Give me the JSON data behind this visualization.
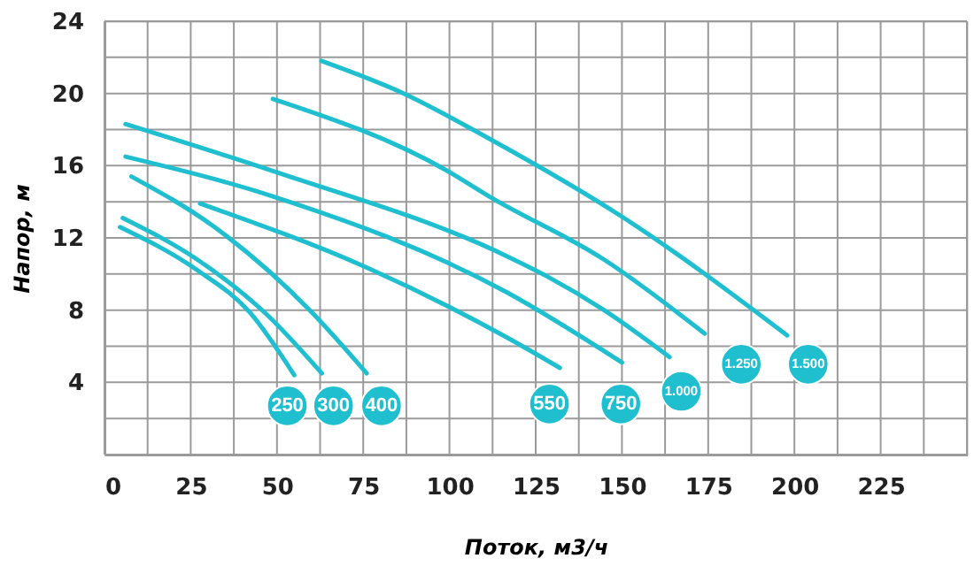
{
  "chart_data": {
    "type": "line",
    "xlabel": "Поток, м3/ч",
    "ylabel": "Напор, м",
    "xlim": [
      0,
      250
    ],
    "ylim": [
      0,
      24
    ],
    "xticks": [
      0,
      {
        "value": 12.5,
        "label": null
      },
      25,
      {
        "value": 37.5,
        "label": null
      },
      50,
      {
        "value": 62.5,
        "label": null
      },
      75,
      {
        "value": 87.5,
        "label": null
      },
      100,
      {
        "value": 112.5,
        "label": null
      },
      125,
      {
        "value": 137.5,
        "label": null
      },
      150,
      {
        "value": 162.5,
        "label": null
      },
      175,
      {
        "value": 187.5,
        "label": null
      },
      200,
      {
        "value": 212.5,
        "label": null
      },
      225,
      {
        "value": 237.5,
        "label": null
      },
      {
        "value": 250,
        "label": null
      }
    ],
    "yticks": [
      {
        "value": 0,
        "label": null
      },
      {
        "value": 2,
        "label": null
      },
      4,
      {
        "value": 6,
        "label": null
      },
      8,
      {
        "value": 10,
        "label": null
      },
      12,
      {
        "value": 14,
        "label": null
      },
      16,
      {
        "value": 18,
        "label": null
      },
      20,
      {
        "value": 22,
        "label": null
      },
      24
    ],
    "grid": true,
    "marker": "none",
    "line_style": "solid",
    "series": [
      {
        "color": "#1fbfd0",
        "x": [
          4.5,
          27,
          42,
          55
        ],
        "values": [
          12.6,
          10.2,
          7.9,
          4.4
        ]
      },
      {
        "color": "#1fbfd0",
        "x": [
          5.3,
          26.9,
          46.8,
          63
        ],
        "values": [
          13.1,
          10.8,
          7.8,
          4.5
        ]
      },
      {
        "color": "#1fbfd0",
        "x": [
          7.8,
          31.9,
          60,
          76
        ],
        "values": [
          15.4,
          12.6,
          7.9,
          4.5
        ]
      },
      {
        "color": "#1fbfd0",
        "x": [
          27.7,
          76.7,
          116.5,
          132
        ],
        "values": [
          13.9,
          10.3,
          6.5,
          4.8
        ]
      },
      {
        "color": "#1fbfd0",
        "x": [
          6.1,
          48.8,
          116.5,
          150
        ],
        "values": [
          16.5,
          14.3,
          9.0,
          5.1
        ]
      },
      {
        "color": "#1fbfd0",
        "x": [
          6.1,
          48.8,
          116.5,
          128,
          144.8,
          163.8
        ],
        "values": [
          18.3,
          15.7,
          11.0,
          9.9,
          8.0,
          5.4
        ]
      },
      {
        "color": "#1fbfd0",
        "x": [
          48.8,
          99.5,
          111.5,
          144.8,
          174
        ],
        "values": [
          19.7,
          15.7,
          14.3,
          10.8,
          6.7
        ]
      },
      {
        "color": "#1fbfd0",
        "x": [
          62.9,
          86.7,
          111.5,
          149.8,
          197.9
        ],
        "values": [
          21.8,
          20.0,
          17.5,
          13.2,
          6.6
        ]
      }
    ],
    "annotations": [
      {
        "text": "250",
        "x": 53,
        "y": 2.7
      },
      {
        "text": "300",
        "x": 66.4,
        "y": 2.7
      },
      {
        "text": "400",
        "x": 80.3,
        "y": 2.7
      },
      {
        "text": "550",
        "x": 129,
        "y": 2.8
      },
      {
        "text": "750",
        "x": 149.7,
        "y": 2.8
      },
      {
        "text": "1.000",
        "x": 167.2,
        "y": 3.5
      },
      {
        "text": "1.250",
        "x": 184.6,
        "y": 5.0
      },
      {
        "text": "1.500",
        "x": 204,
        "y": 5.0
      }
    ]
  }
}
